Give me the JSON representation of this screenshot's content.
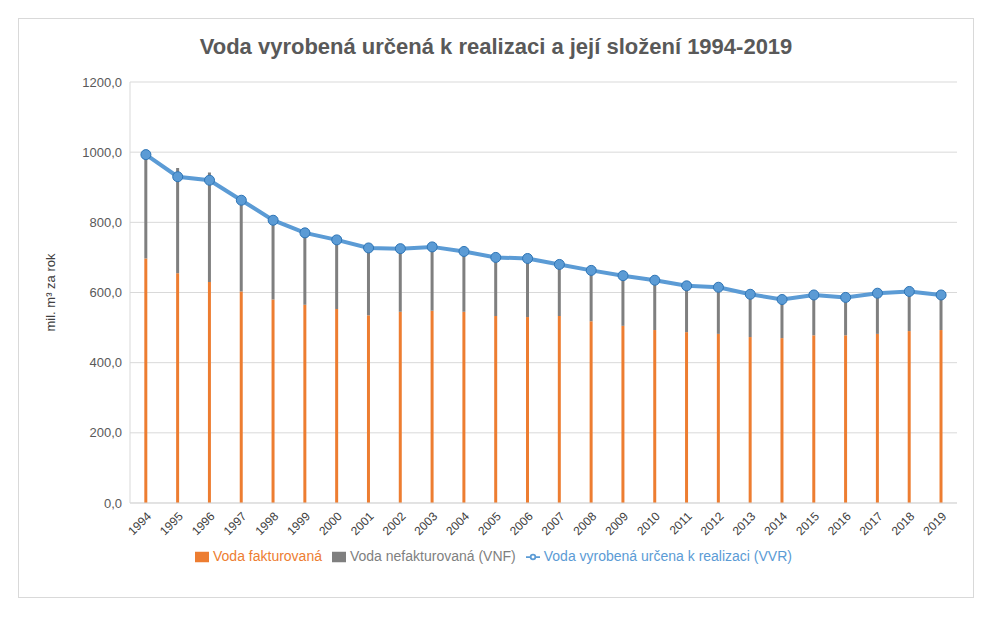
{
  "chart_data": {
    "type": "bar",
    "title": "Voda vyrobená určená k realizaci a její složení 1994-2019",
    "y_label": "mil. m³ za rok",
    "categories": [
      "1994",
      "1995",
      "1996",
      "1997",
      "1998",
      "1999",
      "2000",
      "2001",
      "2002",
      "2003",
      "2004",
      "2005",
      "2006",
      "2007",
      "2008",
      "2009",
      "2010",
      "2011",
      "2012",
      "2013",
      "2014",
      "2015",
      "2016",
      "2017",
      "2018",
      "2019"
    ],
    "series": [
      {
        "name": "Voda fakturovaná",
        "type": "bar",
        "color": "#ED7D31",
        "values": [
          697,
          655,
          630,
          603,
          580,
          565,
          553,
          535,
          545,
          548,
          545,
          533,
          530,
          533,
          518,
          505,
          493,
          487,
          482,
          473,
          470,
          478,
          478,
          482,
          490,
          493
        ]
      },
      {
        "name": "Voda nefakturovaná (VNF)",
        "type": "bar",
        "color": "#7F7F7F",
        "values": [
          305,
          300,
          312,
          262,
          230,
          205,
          197,
          192,
          180,
          182,
          172,
          167,
          167,
          147,
          145,
          143,
          142,
          132,
          133,
          122,
          110,
          115,
          108,
          116,
          113,
          100
        ]
      },
      {
        "name": "Voda vyrobená určena k realizaci (VVR)",
        "type": "line",
        "color": "#5B9BD5",
        "marker": "circle",
        "values": [
          993,
          930,
          920,
          863,
          806,
          770,
          750,
          727,
          725,
          730,
          717,
          700,
          697,
          680,
          663,
          648,
          635,
          619,
          615,
          595,
          580,
          593,
          586,
          598,
          603,
          593
        ]
      }
    ],
    "stacked": true,
    "ylim": [
      0,
      1200
    ],
    "yticks": [
      {
        "value": 0,
        "label": "0,0"
      },
      {
        "value": 200,
        "label": "200,0"
      },
      {
        "value": 400,
        "label": "400,0"
      },
      {
        "value": 600,
        "label": "600,0"
      },
      {
        "value": 800,
        "label": "800,0"
      },
      {
        "value": 1000,
        "label": "1000,0"
      },
      {
        "value": 1200,
        "label": "1200,0"
      }
    ],
    "grid": true,
    "legend": "bottom"
  }
}
